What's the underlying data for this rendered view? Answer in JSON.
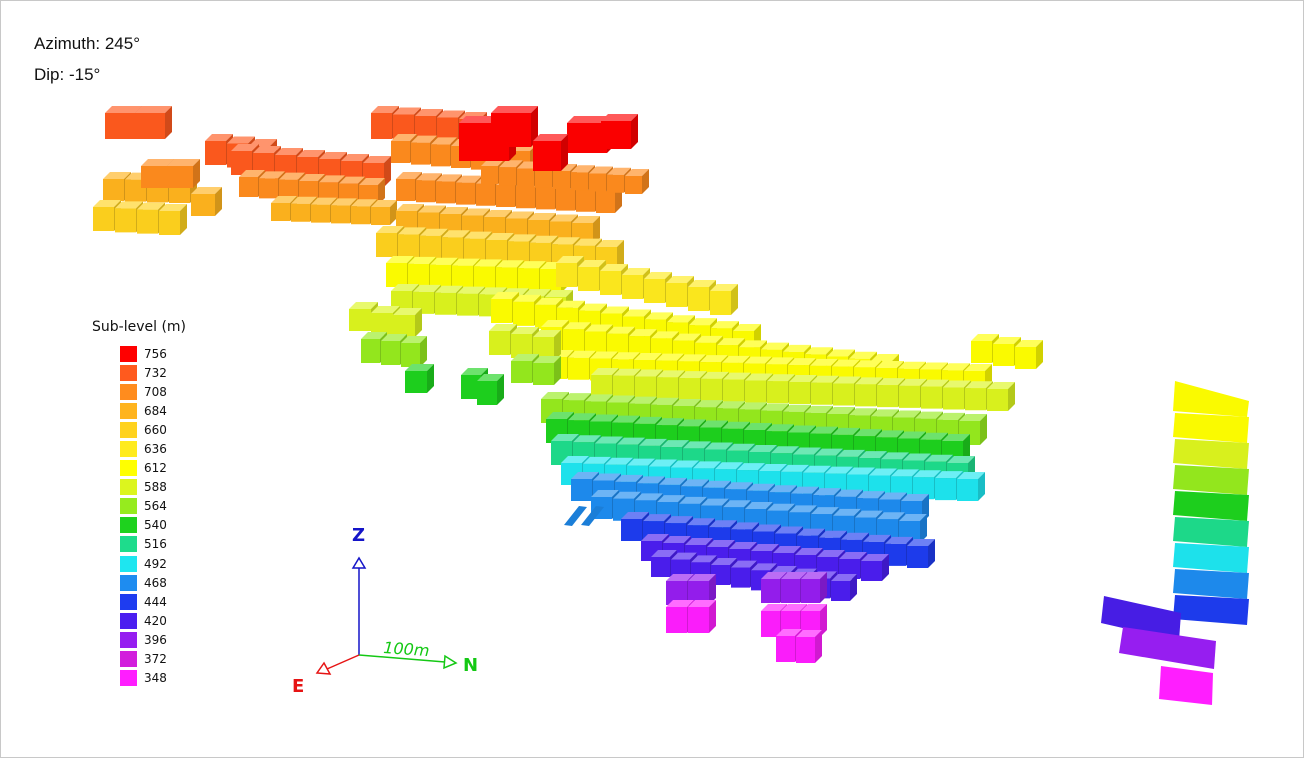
{
  "view": {
    "azimuth_text": "Azimuth: 245°",
    "dip_text": "Dip: -15°"
  },
  "legend": {
    "title": "Sub-level (m)",
    "items": [
      {
        "label": "756",
        "color": "#ff0000"
      },
      {
        "label": "732",
        "color": "#ff5a1e"
      },
      {
        "label": "708",
        "color": "#ff8c1e"
      },
      {
        "label": "684",
        "color": "#ffb41e"
      },
      {
        "label": "660",
        "color": "#ffd21e"
      },
      {
        "label": "636",
        "color": "#ffeb1e"
      },
      {
        "label": "612",
        "color": "#ffff00"
      },
      {
        "label": "588",
        "color": "#dcf51e"
      },
      {
        "label": "564",
        "color": "#96eb1e"
      },
      {
        "label": "540",
        "color": "#1ed21e"
      },
      {
        "label": "516",
        "color": "#1edc8c"
      },
      {
        "label": "492",
        "color": "#1ee6f0"
      },
      {
        "label": "468",
        "color": "#1e8cf0"
      },
      {
        "label": "444",
        "color": "#1e3cf0"
      },
      {
        "label": "420",
        "color": "#4b1ef0"
      },
      {
        "label": "396",
        "color": "#961ef0"
      },
      {
        "label": "372",
        "color": "#d21edc"
      },
      {
        "label": "348",
        "color": "#ff1eff"
      }
    ]
  },
  "axes": {
    "z_label": "Z",
    "n_label": "N",
    "e_label": "E",
    "scale_label": "100m",
    "z_color": "#1414c8",
    "n_color": "#14c814",
    "e_color": "#e61414"
  }
}
